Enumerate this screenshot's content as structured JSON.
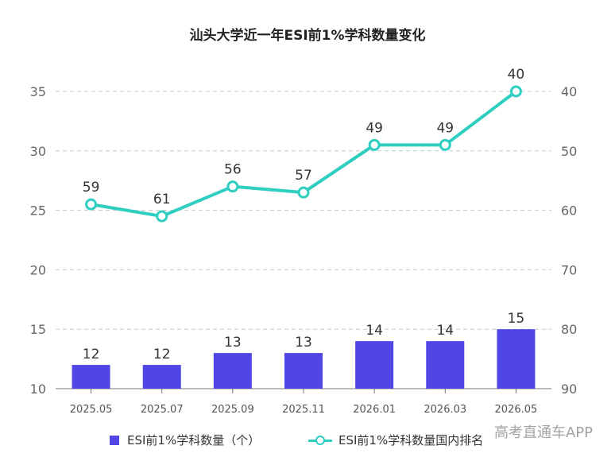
{
  "chart_data": {
    "type": "bar",
    "title": "汕头大学近一年ESI前1%学科数量变化",
    "categories": [
      "2025.05",
      "2025.07",
      "2025.09",
      "2025.11",
      "2026.01",
      "2026.03",
      "2026.05"
    ],
    "series": [
      {
        "name": "ESI前1%学科数量（个）",
        "type": "bar",
        "axis": "left",
        "values": [
          12,
          12,
          13,
          13,
          14,
          14,
          15
        ],
        "color": "#4f46e5"
      },
      {
        "name": "ESI前1%学科数量国内排名",
        "type": "line",
        "axis": "right",
        "values": [
          59,
          61,
          56,
          57,
          49,
          49,
          40
        ],
        "color": "#2ecfc0"
      }
    ],
    "y_left": {
      "min": 10,
      "max": 35,
      "ticks": [
        10,
        15,
        20,
        25,
        30,
        35
      ]
    },
    "y_right": {
      "min": 40,
      "max": 90,
      "ticks": [
        40,
        50,
        60,
        70,
        80,
        90
      ],
      "inverted": true
    },
    "grid": true,
    "legend_position": "bottom"
  },
  "watermark": "高考直通车APP"
}
